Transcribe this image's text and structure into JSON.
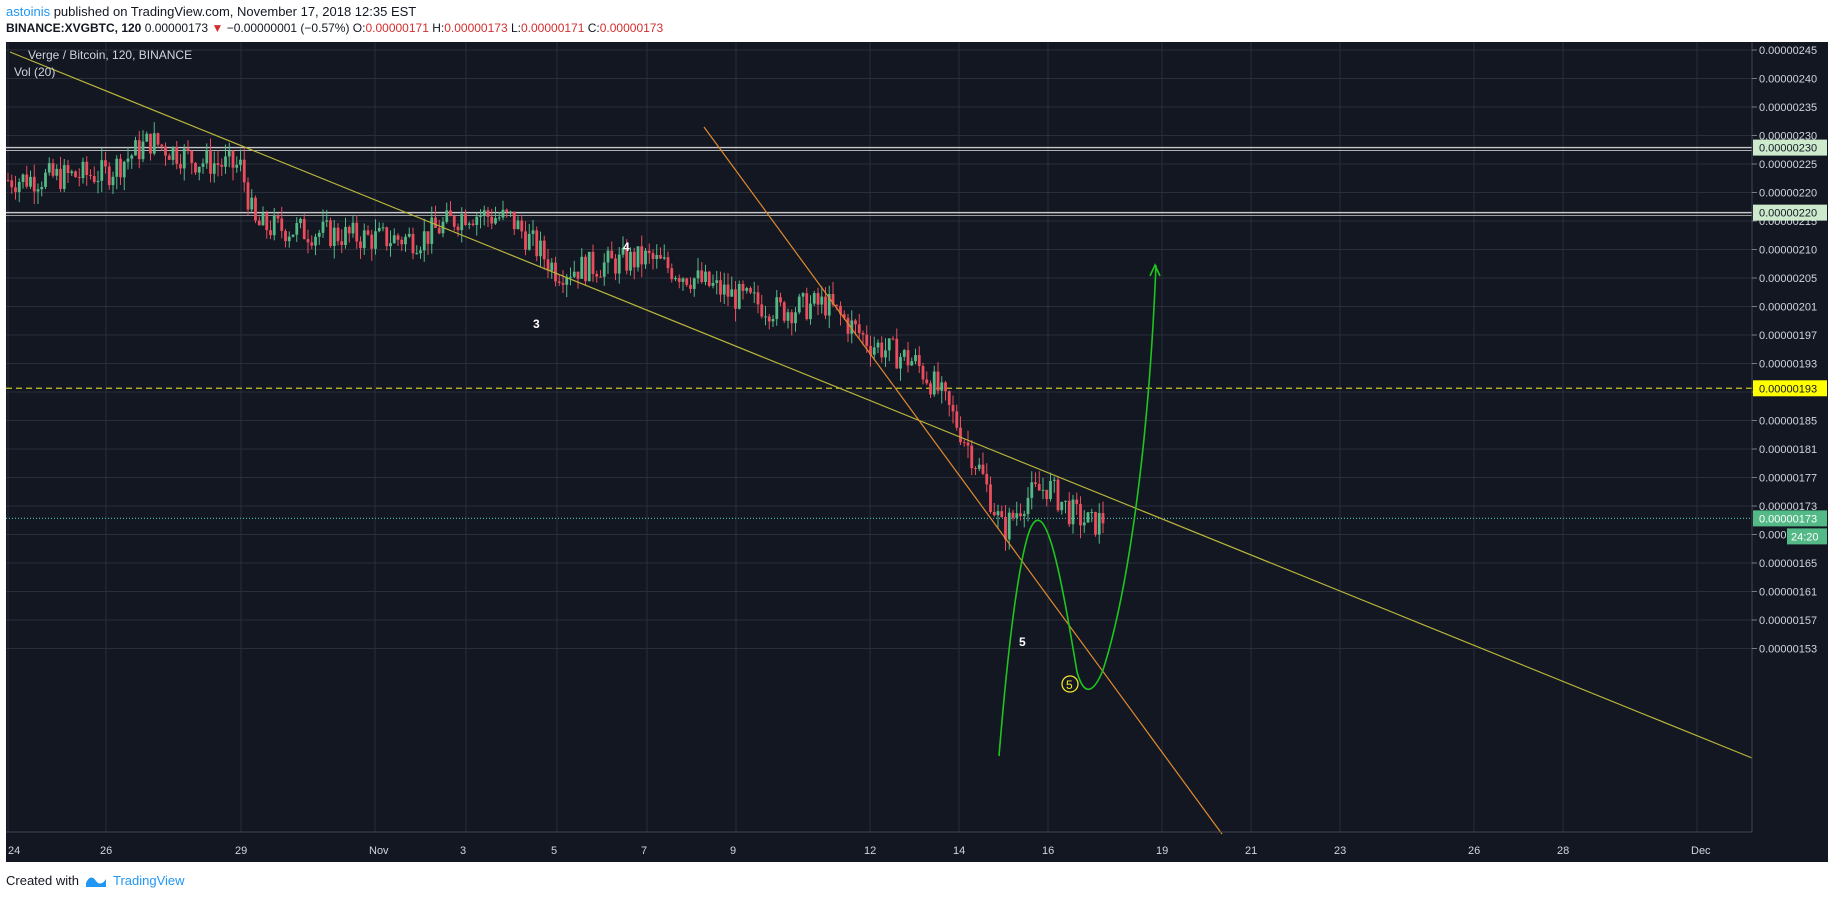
{
  "header": {
    "user": "astoinis",
    "published_text": " published on TradingView.com, November 17, 2018 12:35 EST",
    "symbol": "BINANCE:XVGBTC, 120",
    "last_price": "0.00000173",
    "arrow": "▼",
    "change": "−0.00000001 (−0.57%)",
    "o_label": "O:",
    "o_value": "0.00000171",
    "h_label": "H:",
    "h_value": "0.00000173",
    "l_label": "L:",
    "l_value": "0.00000171",
    "c_label": "C:",
    "c_value": "0.00000173"
  },
  "legend": {
    "series_title": "Verge / Bitcoin, 120, BINANCE",
    "indicator": "Vol (20)"
  },
  "footer": {
    "created_with": "Created with",
    "brand": "TradingView"
  },
  "colors": {
    "background": "#131722",
    "grid": "#2a2e39",
    "up_candle": "#53b987",
    "down_candle": "#eb4d5c",
    "trendline": "#b8b43a",
    "steep_trendline": "#e08a2e",
    "projection": "#1ec51e",
    "level_line": "#c8c8c8",
    "dashed_level": "#c9c42d",
    "current_price_line": "#4ab0a6"
  },
  "chart_data": {
    "type": "candlestick",
    "title": "Verge / Bitcoin, 120, BINANCE",
    "x_tick_labels": [
      "24",
      "26",
      "29",
      "Nov",
      "3",
      "5",
      "7",
      "9",
      "12",
      "14",
      "16",
      "19",
      "21",
      "23",
      "26",
      "28",
      "Dec"
    ],
    "y_tick_labels": [
      "0.00000245",
      "0.00000240",
      "0.00000235",
      "0.00000230",
      "0.00000225",
      "0.00000220",
      "0.00000215",
      "0.00000210",
      "0.00000205",
      "0.00000201",
      "0.00000197",
      "0.00000193",
      "0.00000189",
      "0.00000185",
      "0.00000181",
      "0.00000177",
      "0.00000173",
      "0.00000169",
      "0.00000165",
      "0.00000161",
      "0.00000157",
      "0.00000153"
    ],
    "ylim": [
      1.51e-06,
      2.47e-06
    ],
    "price_series_close_approx": [
      [
        "24",
        2.25e-06
      ],
      [
        "26",
        2.26e-06
      ],
      [
        "27",
        2.31e-06
      ],
      [
        "28",
        2.28e-06
      ],
      [
        "29",
        2.27e-06
      ],
      [
        "29.5",
        2.18e-06
      ],
      [
        "Nov",
        2.16e-06
      ],
      [
        "2",
        2.16e-06
      ],
      [
        "3",
        2.2e-06
      ],
      [
        "4",
        2.19e-06
      ],
      [
        "5",
        2.11e-06
      ],
      [
        "6",
        2.12e-06
      ],
      [
        "7",
        2.13e-06
      ],
      [
        "8",
        2.1e-06
      ],
      [
        "9",
        2.07e-06
      ],
      [
        "10",
        2.05e-06
      ],
      [
        "11",
        2.06e-06
      ],
      [
        "12",
        2e-06
      ],
      [
        "13",
        1.97e-06
      ],
      [
        "13.5",
        1.93e-06
      ],
      [
        "14",
        1.87e-06
      ],
      [
        "14.5",
        1.8e-06
      ],
      [
        "15",
        1.71e-06
      ],
      [
        "15.5",
        1.76e-06
      ],
      [
        "16",
        1.78e-06
      ],
      [
        "16.5",
        1.74e-06
      ],
      [
        "17",
        1.72e-06
      ],
      [
        "17.3",
        1.73e-06
      ]
    ],
    "horizontal_levels": [
      {
        "value": 2.3e-06,
        "label": "0.00000230"
      },
      {
        "value": 2.2e-06,
        "label": "0.00000220"
      },
      {
        "value": 1.93e-06,
        "label": "0.00000193",
        "style": "dashed"
      },
      {
        "value": 1.73e-06,
        "label": "0.00000173",
        "style": "current"
      }
    ],
    "countdown_label": "24:20",
    "wave_labels": [
      "3",
      "4",
      "5"
    ],
    "circled_label": "5",
    "grid": true
  }
}
